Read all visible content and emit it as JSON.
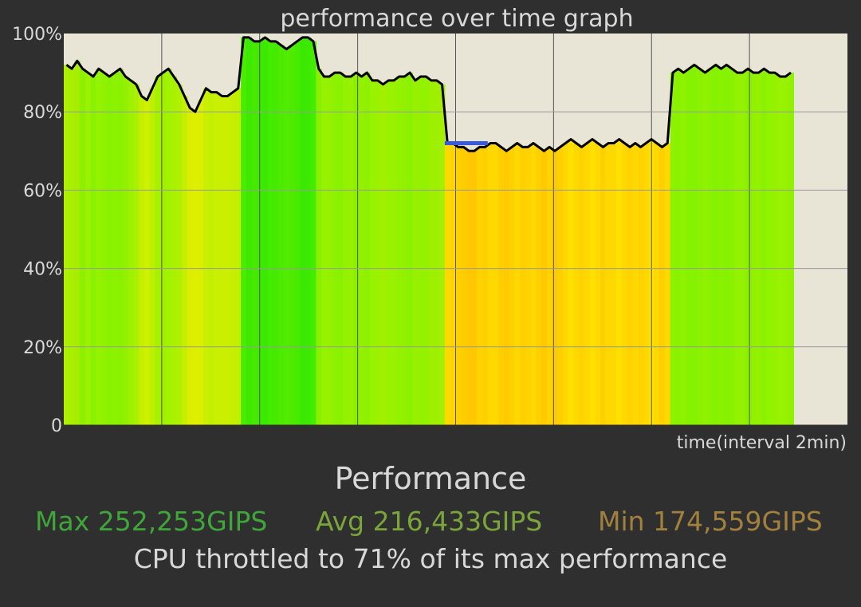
{
  "chart_data": {
    "type": "area",
    "title": "performance over time graph",
    "xlabel": "time(interval 2min)",
    "ylabel": "",
    "ylim": [
      0,
      100
    ],
    "yticks": [
      "0",
      "20%",
      "40%",
      "60%",
      "80%",
      "100%"
    ],
    "x_intervals_total": 8,
    "data_intervals": 7.45,
    "grid": true,
    "colors": {
      "plot_bg": "#e8e4d6",
      "grid": "#9a9a9a",
      "line": "#000000",
      "marker": "#3a5bd9",
      "text": "#d8d8d8"
    },
    "series": [
      {
        "values": [
          92,
          91,
          93,
          91,
          90,
          89,
          91,
          90,
          89,
          90,
          91,
          89,
          88,
          87,
          84,
          83,
          86,
          89,
          90,
          91,
          89,
          87,
          84,
          81,
          80,
          83,
          86,
          85,
          85,
          84,
          84,
          85,
          86,
          99,
          99,
          98,
          98,
          99,
          98,
          98,
          97,
          96,
          97,
          98,
          99,
          99,
          98,
          91,
          89,
          89,
          90,
          90,
          89,
          89,
          90,
          89,
          90,
          88,
          88,
          87,
          88,
          88,
          89,
          89,
          90,
          88,
          89,
          89,
          88,
          88,
          87,
          72,
          72,
          71,
          71,
          70,
          70,
          71,
          71,
          72,
          72,
          71,
          70,
          71,
          72,
          71,
          71,
          72,
          71,
          70,
          71,
          70,
          71,
          72,
          73,
          72,
          71,
          72,
          73,
          72,
          71,
          72,
          72,
          73,
          72,
          71,
          72,
          71,
          72,
          73,
          72,
          71,
          72,
          90,
          91,
          90,
          91,
          92,
          91,
          90,
          91,
          92,
          91,
          92,
          91,
          90,
          90,
          91,
          90,
          90,
          91,
          90,
          90,
          89,
          89,
          90
        ],
        "colors": [
          "#aef000",
          "#a6f000",
          "#a8ec00",
          "#8cf000",
          "#9af200",
          "#8af200",
          "#94f400",
          "#90f200",
          "#88f200",
          "#8cf200",
          "#8af200",
          "#92f000",
          "#9cf200",
          "#aaf000",
          "#c4f000",
          "#cff000",
          "#bcf000",
          "#a6f000",
          "#a0f000",
          "#a0f400",
          "#a8f200",
          "#b0f000",
          "#c6ee00",
          "#dcee00",
          "#e2ee00",
          "#daf000",
          "#c8f000",
          "#c2f000",
          "#c8f000",
          "#caf000",
          "#c8f000",
          "#c6ee00",
          "#c0f000",
          "#4aec00",
          "#3cea00",
          "#44ea00",
          "#40ea00",
          "#3aea00",
          "#44ec00",
          "#46ea00",
          "#4eea00",
          "#52ec00",
          "#50ea00",
          "#46ec00",
          "#3ce800",
          "#3cea00",
          "#44ec00",
          "#88f000",
          "#96f200",
          "#94f200",
          "#8cf200",
          "#8af200",
          "#92f200",
          "#96f200",
          "#8af000",
          "#92f200",
          "#8cf200",
          "#98f200",
          "#9af200",
          "#a2f000",
          "#9af200",
          "#98f200",
          "#92f200",
          "#92f000",
          "#8af200",
          "#98f000",
          "#94f200",
          "#92f200",
          "#9cf000",
          "#9cf000",
          "#a4f000",
          "#ffd800",
          "#ffd400",
          "#ffd000",
          "#ffcc00",
          "#ffc800",
          "#ffc800",
          "#ffd200",
          "#ffd000",
          "#ffd800",
          "#ffd800",
          "#ffce00",
          "#ffca00",
          "#ffd000",
          "#ffd800",
          "#ffd000",
          "#ffd200",
          "#ffd800",
          "#ffd000",
          "#ffc800",
          "#ffd200",
          "#ffca00",
          "#ffd000",
          "#ffd800",
          "#ffe000",
          "#ffd800",
          "#ffd200",
          "#ffd800",
          "#ffe000",
          "#ffda00",
          "#ffd000",
          "#ffd800",
          "#ffd800",
          "#ffe000",
          "#ffd800",
          "#ffd200",
          "#ffd800",
          "#ffd200",
          "#ffd800",
          "#ffe000",
          "#ffd800",
          "#ffd000",
          "#ffd800",
          "#8cf200",
          "#88f200",
          "#8ef200",
          "#86f200",
          "#84f200",
          "#8af200",
          "#90f200",
          "#88f200",
          "#84f200",
          "#8af200",
          "#84f200",
          "#8af200",
          "#92f200",
          "#94f200",
          "#8af200",
          "#90f200",
          "#94f200",
          "#8af200",
          "#92f200",
          "#94f200",
          "#98f200",
          "#96f200",
          "#90f200"
        ]
      }
    ],
    "throttle_marker": {
      "value": 72,
      "from_index": 71,
      "to_index": 79
    }
  },
  "stats": {
    "heading": "Performance",
    "max": "Max 252,253GIPS",
    "avg": "Avg 216,433GIPS",
    "min": "Min 174,559GIPS",
    "throttle_message": "CPU throttled to 71% of its max performance"
  }
}
